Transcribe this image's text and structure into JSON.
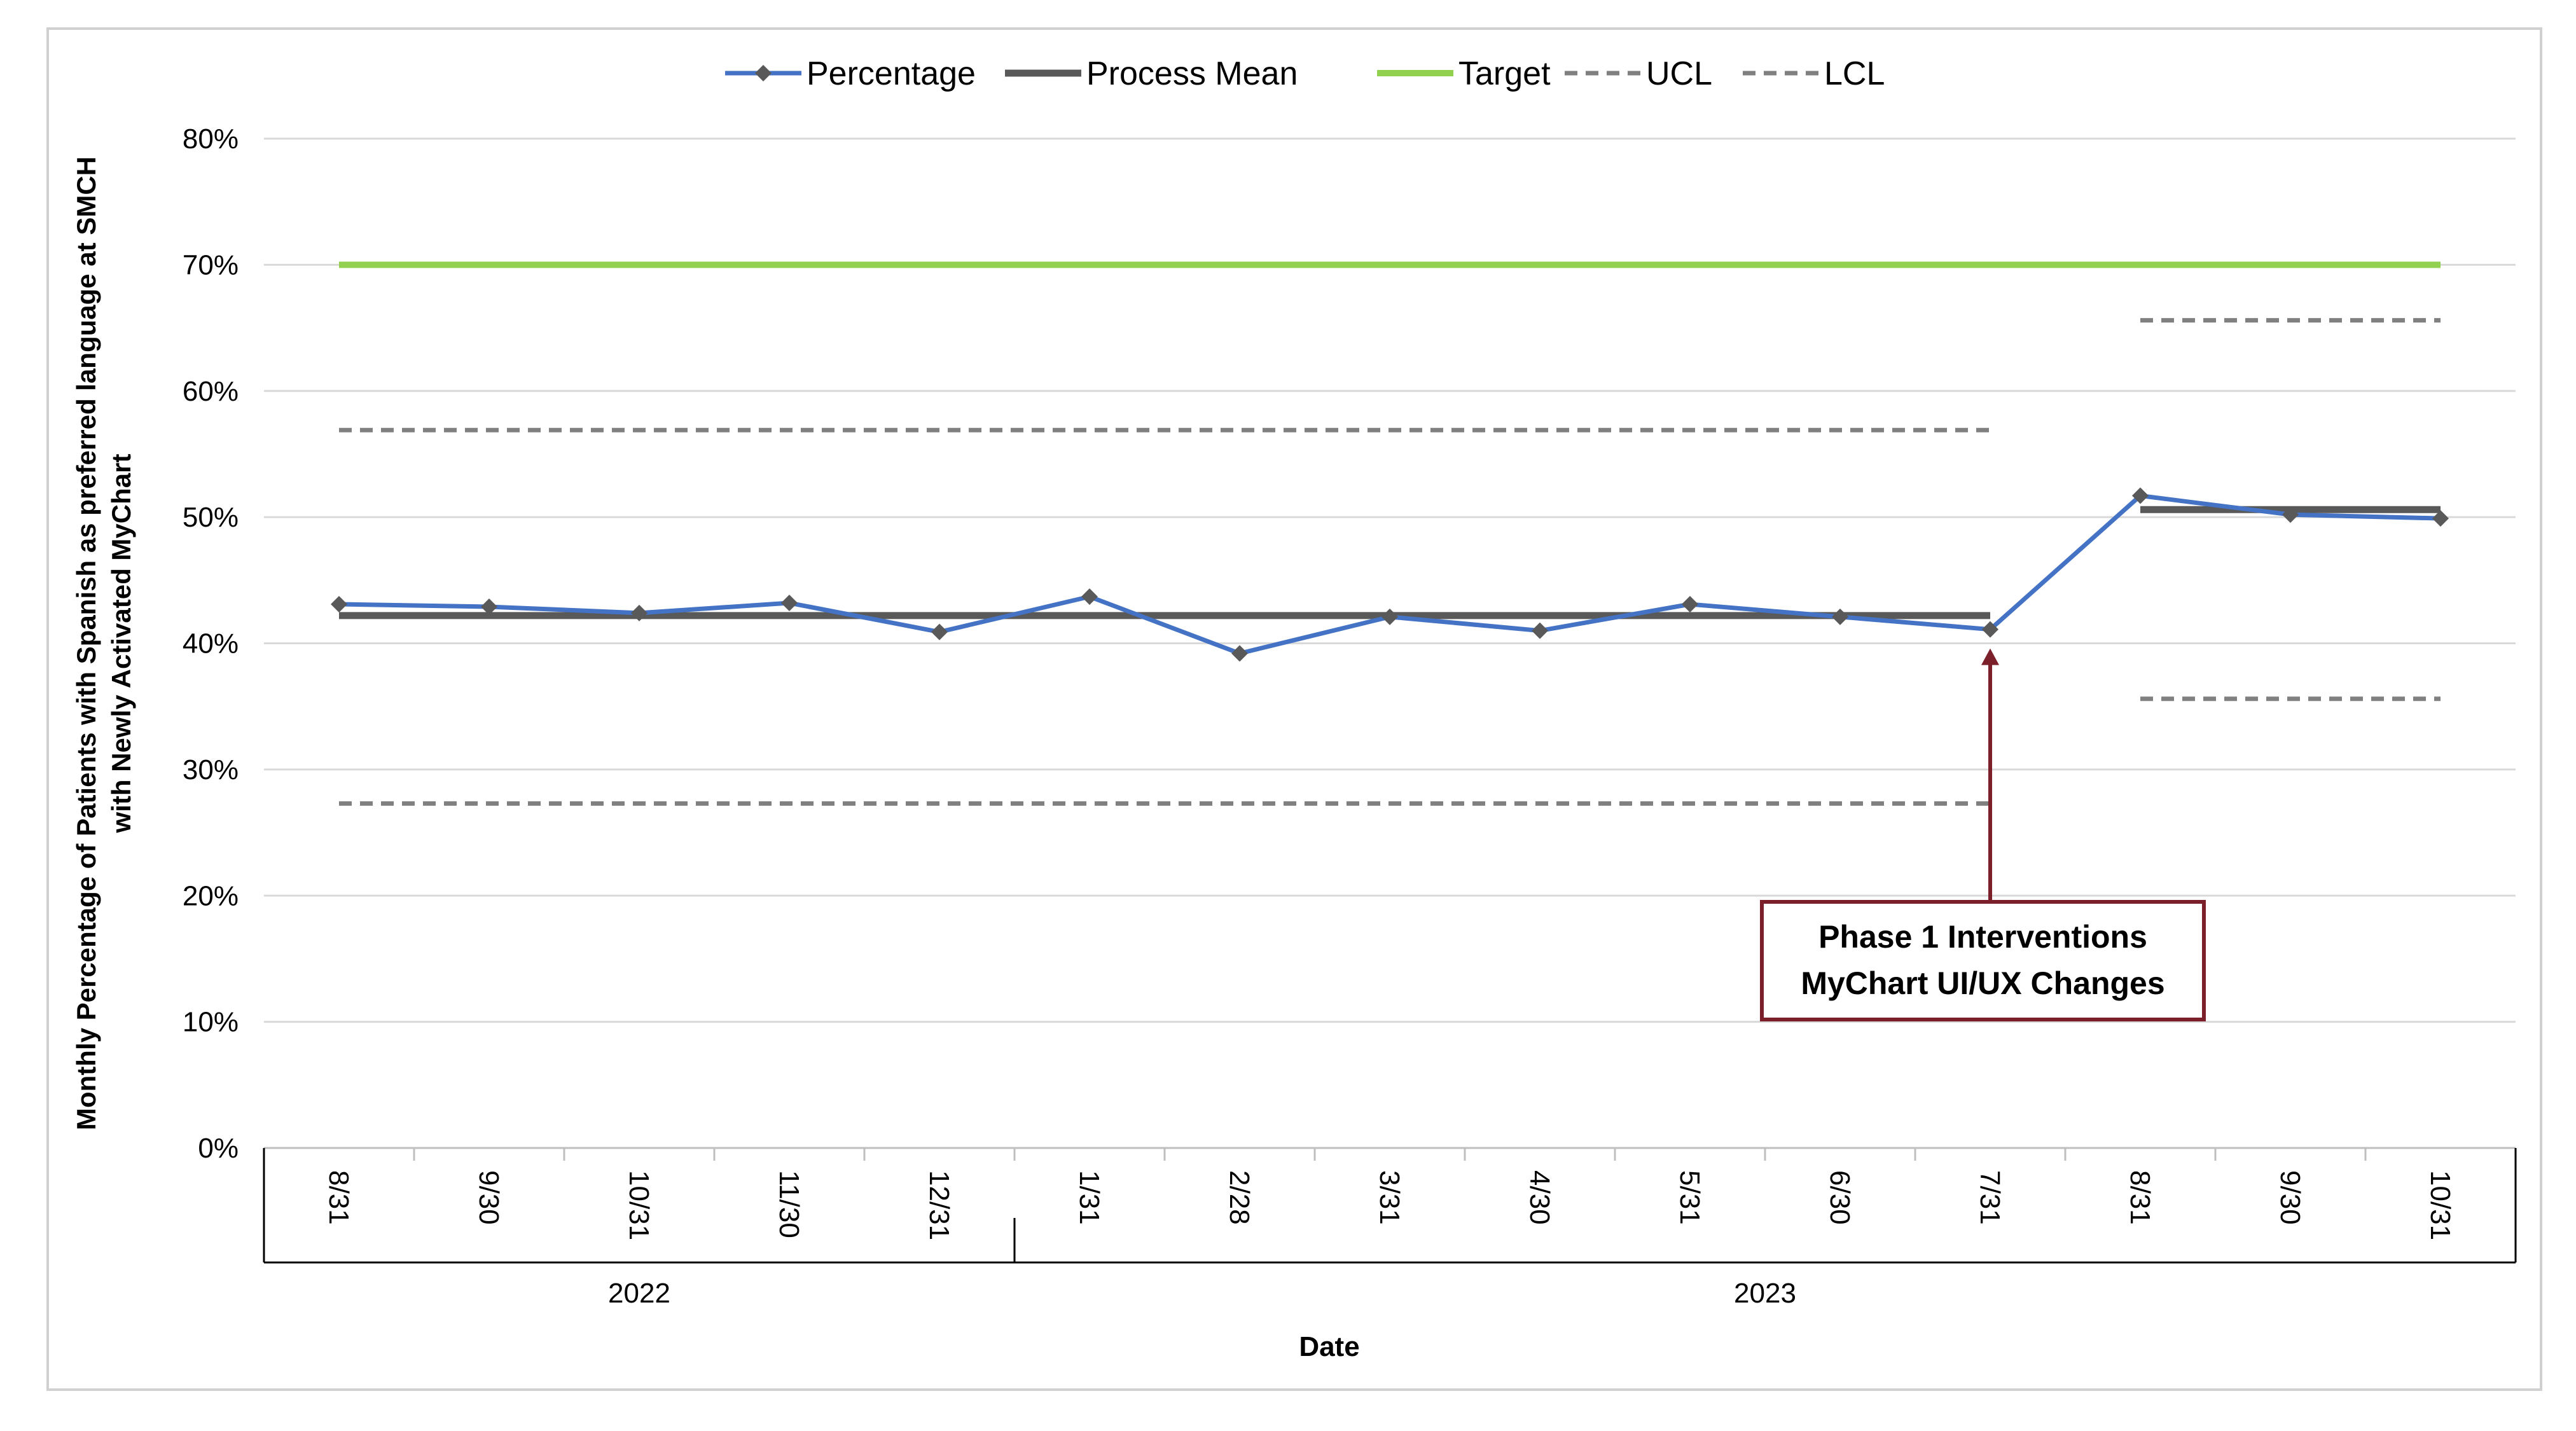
{
  "chart_data": {
    "type": "line",
    "xlabel": "Date",
    "ylabel_lines": [
      "Monthly Percentage of Patients with Spanish as preferred language at SMCH",
      "with Newly Activated MyChart"
    ],
    "ylim": [
      0,
      80
    ],
    "yticks": [
      0,
      10,
      20,
      30,
      40,
      50,
      60,
      70,
      80
    ],
    "ytick_labels": [
      "0%",
      "10%",
      "20%",
      "30%",
      "40%",
      "50%",
      "60%",
      "70%",
      "80%"
    ],
    "categories": [
      "8/31",
      "9/30",
      "10/31",
      "11/30",
      "12/31",
      "1/31",
      "2/28",
      "3/31",
      "4/30",
      "5/31",
      "6/30",
      "7/31",
      "8/31",
      "9/30",
      "10/31"
    ],
    "year_groups": [
      {
        "label": "2022",
        "start": 0,
        "end": 4
      },
      {
        "label": "2023",
        "start": 5,
        "end": 14
      }
    ],
    "legend_position": "top-center",
    "grid": true,
    "series": [
      {
        "name": "Percentage",
        "color": "#4472C4",
        "marker_color": "#595959",
        "style": "line-diamond",
        "values": [
          43.1,
          42.9,
          42.4,
          43.2,
          40.9,
          43.7,
          39.2,
          42.1,
          41.0,
          43.1,
          42.1,
          41.1,
          51.7,
          50.2,
          49.9
        ]
      },
      {
        "name": "Process Mean",
        "color": "#595959",
        "style": "solid-thick",
        "segments": [
          {
            "start": 0,
            "end": 11,
            "value": 42.2
          },
          {
            "start": 12,
            "end": 14,
            "value": 50.6
          }
        ]
      },
      {
        "name": "Target",
        "color": "#92D050",
        "style": "solid",
        "segments": [
          {
            "start": 0,
            "end": 14,
            "value": 70
          }
        ]
      },
      {
        "name": "UCL",
        "color": "#808080",
        "style": "dashed",
        "segments": [
          {
            "start": 0,
            "end": 11,
            "value": 56.9
          },
          {
            "start": 12,
            "end": 14,
            "value": 65.6
          }
        ]
      },
      {
        "name": "LCL",
        "color": "#808080",
        "style": "dashed",
        "segments": [
          {
            "start": 0,
            "end": 11,
            "value": 27.3
          },
          {
            "start": 12,
            "end": 14,
            "value": 35.6
          }
        ]
      }
    ],
    "annotation": {
      "lines": [
        "Phase 1 Interventions",
        "MyChart UI/UX Changes"
      ],
      "target_index": 11,
      "target_value": 41.1,
      "border_color": "#7B1F2B"
    }
  }
}
